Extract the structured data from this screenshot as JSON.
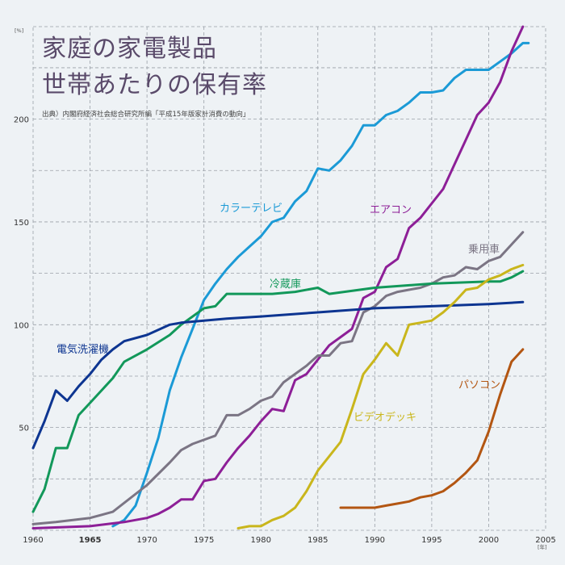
{
  "title_lines": [
    "家庭の家電製品",
    "世帯あたりの保有率"
  ],
  "source": "出典）内閣府経済社会総合研究所編「平成15年版家計消費の動向」",
  "chart_data": {
    "type": "line",
    "title": "家庭の家電製品 世帯あたりの保有率",
    "y_unit": "[%]",
    "x_unit": "[年]",
    "xlim": [
      1960,
      2005
    ],
    "ylim": [
      0,
      245
    ],
    "x_ticks": [
      1960,
      1965,
      1970,
      1975,
      1980,
      1985,
      1990,
      1995,
      2000,
      2005
    ],
    "x_tick_labels": [
      "1960",
      "1965",
      "1970",
      "1975",
      "1980",
      "1985",
      "1990",
      "1995",
      "2000",
      "2005"
    ],
    "y_ticks": [
      50,
      100,
      150,
      200
    ],
    "y_tick_labels": [
      "50",
      "100",
      "150",
      "200"
    ],
    "grid": true,
    "series": [
      {
        "name": "カラーテレビ",
        "color": "#1b9ad6",
        "x": [
          1967,
          1968,
          1969,
          1970,
          1971,
          1972,
          1973,
          1974,
          1975,
          1976,
          1977,
          1978,
          1979,
          1980,
          1981,
          1982,
          1983,
          1984,
          1985,
          1986,
          1987,
          1988,
          1989,
          1990,
          1991,
          1992,
          1993,
          1994,
          1995,
          1996,
          1997,
          1998,
          1999,
          2000,
          2001,
          2002,
          2003,
          2003.5
        ],
        "y": [
          2,
          5,
          12,
          28,
          45,
          68,
          84,
          98,
          112,
          120,
          127,
          133,
          138,
          143,
          150,
          152,
          160,
          165,
          176,
          175,
          180,
          187,
          197,
          197,
          202,
          204,
          208,
          213,
          213,
          214,
          220,
          224,
          224,
          224,
          228,
          232,
          237,
          237
        ]
      },
      {
        "name": "エアコン",
        "color": "#8d1f97",
        "x": [
          1960,
          1965,
          1968,
          1970,
          1971,
          1972,
          1973,
          1974,
          1975,
          1976,
          1977,
          1978,
          1979,
          1980,
          1981,
          1982,
          1983,
          1984,
          1985,
          1986,
          1987,
          1988,
          1989,
          1990,
          1991,
          1992,
          1993,
          1994,
          1995,
          1996,
          1997,
          1998,
          1999,
          2000,
          2001,
          2002,
          2003
        ],
        "y": [
          1,
          2,
          4,
          6,
          8,
          11,
          15,
          15,
          24,
          25,
          33,
          40,
          46,
          53,
          59,
          58,
          73,
          76,
          83,
          90,
          94,
          98,
          113,
          116,
          128,
          132,
          147,
          152,
          159,
          166,
          178,
          190,
          202,
          208,
          218,
          233,
          245
        ]
      },
      {
        "name": "乗用車",
        "color": "#7b7584",
        "x": [
          1960,
          1962,
          1965,
          1967,
          1970,
          1972,
          1973,
          1974,
          1975,
          1976,
          1977,
          1978,
          1979,
          1980,
          1981,
          1982,
          1983,
          1984,
          1985,
          1986,
          1987,
          1988,
          1989,
          1990,
          1991,
          1992,
          1993,
          1994,
          1995,
          1996,
          1997,
          1998,
          1999,
          2000,
          2001,
          2002,
          2003
        ],
        "y": [
          3,
          4,
          6,
          9,
          22,
          33,
          39,
          42,
          44,
          46,
          56,
          56,
          59,
          63,
          65,
          72,
          76,
          80,
          85,
          85,
          91,
          92,
          106,
          109,
          114,
          116,
          117,
          118,
          120,
          123,
          124,
          128,
          127,
          131,
          133,
          139,
          145
        ]
      },
      {
        "name": "冷蔵庫",
        "color": "#12985a",
        "x": [
          1960,
          1961,
          1962,
          1963,
          1964,
          1965,
          1967,
          1968,
          1970,
          1972,
          1973,
          1974,
          1975,
          1976,
          1977,
          1978,
          1980,
          1981,
          1983,
          1985,
          1986,
          1990,
          1995,
          2000,
          2001,
          2002,
          2003
        ],
        "y": [
          9,
          20,
          40,
          40,
          56,
          62,
          74,
          82,
          88,
          95,
          100,
          104,
          108,
          109,
          115,
          115,
          115,
          115,
          116,
          118,
          115,
          118,
          120,
          121,
          121,
          123,
          126
        ]
      },
      {
        "name": "電気洗濯機",
        "color": "#0d3591",
        "x": [
          1960,
          1961,
          1962,
          1963,
          1964,
          1965,
          1966,
          1967,
          1968,
          1970,
          1972,
          1973,
          1975,
          1977,
          1980,
          1985,
          1990,
          1995,
          2000,
          2003
        ],
        "y": [
          40,
          53,
          68,
          63,
          70,
          76,
          83,
          88,
          92,
          95,
          100,
          101,
          102,
          103,
          104,
          106,
          108,
          109,
          110,
          111
        ]
      },
      {
        "name": "ビデオデッキ",
        "color": "#c9b61c",
        "x": [
          1978,
          1979,
          1980,
          1981,
          1982,
          1983,
          1984,
          1985,
          1986,
          1987,
          1988,
          1989,
          1990,
          1991,
          1992,
          1993,
          1994,
          1995,
          1996,
          1997,
          1998,
          1999,
          2000,
          2001,
          2002,
          2003
        ],
        "y": [
          1,
          2,
          2,
          5,
          7,
          11,
          19,
          29,
          36,
          43,
          59,
          76,
          83,
          91,
          85,
          100,
          101,
          102,
          106,
          111,
          117,
          118,
          122,
          124,
          127,
          129
        ]
      },
      {
        "name": "パソコン",
        "color": "#b35612",
        "x": [
          1987,
          1988,
          1989,
          1990,
          1991,
          1992,
          1993,
          1994,
          1995,
          1996,
          1997,
          1998,
          1999,
          2000,
          2001,
          2002,
          2003
        ],
        "y": [
          11,
          11,
          11,
          11,
          12,
          13,
          14,
          16,
          17,
          19,
          23,
          28,
          34,
          48,
          66,
          82,
          88
        ]
      }
    ]
  }
}
